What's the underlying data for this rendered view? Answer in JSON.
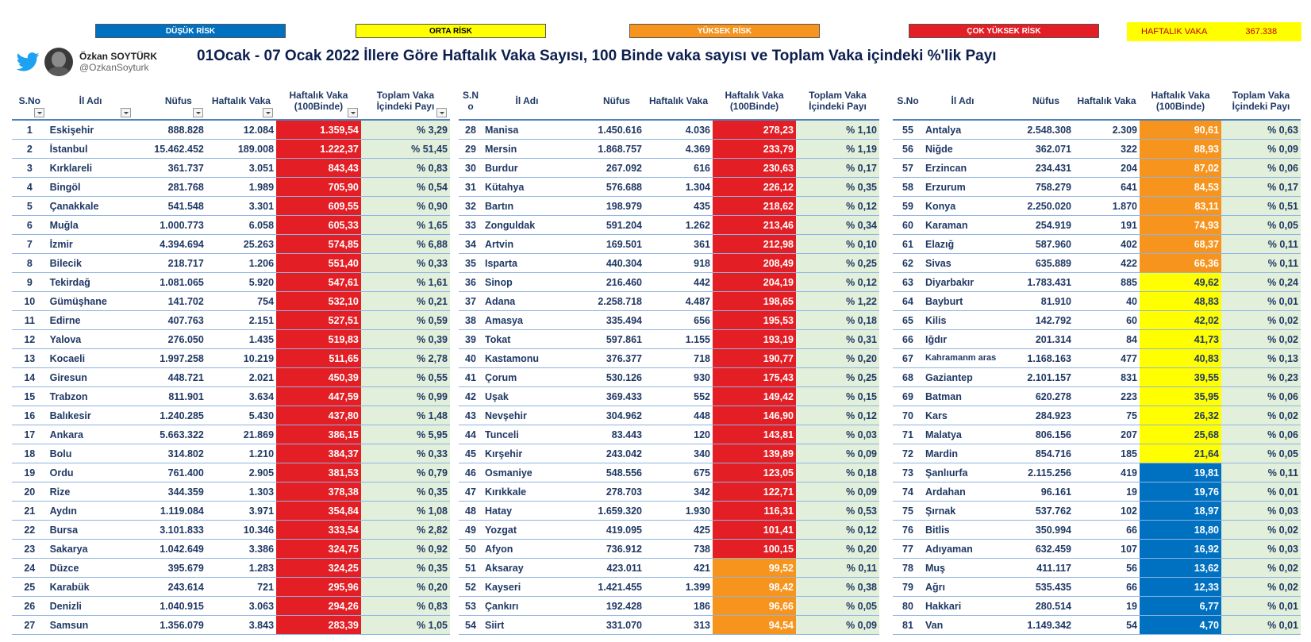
{
  "legend": [
    {
      "label": "DÜŞÜK RİSK",
      "bg": "#0070c0",
      "fg": "#ffffff"
    },
    {
      "label": "ORTA RİSK",
      "bg": "#ffff00",
      "fg": "#000000"
    },
    {
      "label": "YÜKSEK RİSK",
      "bg": "#f7941d",
      "fg": "#ffffff"
    },
    {
      "label": "ÇOK YÜKSEK RİSK",
      "bg": "#e31e24",
      "fg": "#ffffff"
    }
  ],
  "weekly_total": {
    "label": "HAFTALIK VAKA",
    "value": "367.338"
  },
  "author": {
    "name": "Özkan SOYTÜRK",
    "handle": "@OzkanSoyturk"
  },
  "title": "01Ocak - 07 Ocak 2022  İllere Göre Haftalık Vaka Sayısı, 100 Binde vaka sayısı ve Toplam Vaka içindeki %'lik Payı",
  "headers": {
    "no_left": "S.No",
    "no_mid": "S.N o",
    "no_right": "S.No",
    "name": "İl Adı",
    "population": "Nüfus",
    "weekly": "Haftalık Vaka",
    "rate": "Haftalık Vaka (100Binde)",
    "share": "Toplam Vaka İçindeki Payı"
  },
  "colors": {
    "red": "#e31e24",
    "orange": "#f7941d",
    "yellow": "#ffff00",
    "blue": "#0070c0",
    "share_bg": "#e2efda",
    "text": "#1f3864"
  },
  "tables": [
    [
      {
        "no": "1",
        "name": "Eskişehir",
        "population": "888.828",
        "weekly": "12.084",
        "rate": "1.359,54",
        "share": "% 3,29",
        "risk": "red"
      },
      {
        "no": "2",
        "name": "İstanbul",
        "population": "15.462.452",
        "weekly": "189.008",
        "rate": "1.222,37",
        "share": "% 51,45",
        "risk": "red"
      },
      {
        "no": "3",
        "name": "Kırklareli",
        "population": "361.737",
        "weekly": "3.051",
        "rate": "843,43",
        "share": "% 0,83",
        "risk": "red"
      },
      {
        "no": "4",
        "name": "Bingöl",
        "population": "281.768",
        "weekly": "1.989",
        "rate": "705,90",
        "share": "% 0,54",
        "risk": "red"
      },
      {
        "no": "5",
        "name": "Çanakkale",
        "population": "541.548",
        "weekly": "3.301",
        "rate": "609,55",
        "share": "% 0,90",
        "risk": "red"
      },
      {
        "no": "6",
        "name": "Muğla",
        "population": "1.000.773",
        "weekly": "6.058",
        "rate": "605,33",
        "share": "% 1,65",
        "risk": "red"
      },
      {
        "no": "7",
        "name": "İzmir",
        "population": "4.394.694",
        "weekly": "25.263",
        "rate": "574,85",
        "share": "% 6,88",
        "risk": "red"
      },
      {
        "no": "8",
        "name": "Bilecik",
        "population": "218.717",
        "weekly": "1.206",
        "rate": "551,40",
        "share": "% 0,33",
        "risk": "red"
      },
      {
        "no": "9",
        "name": "Tekirdağ",
        "population": "1.081.065",
        "weekly": "5.920",
        "rate": "547,61",
        "share": "% 1,61",
        "risk": "red"
      },
      {
        "no": "10",
        "name": "Gümüşhane",
        "population": "141.702",
        "weekly": "754",
        "rate": "532,10",
        "share": "% 0,21",
        "risk": "red"
      },
      {
        "no": "11",
        "name": "Edirne",
        "population": "407.763",
        "weekly": "2.151",
        "rate": "527,51",
        "share": "% 0,59",
        "risk": "red"
      },
      {
        "no": "12",
        "name": "Yalova",
        "population": "276.050",
        "weekly": "1.435",
        "rate": "519,83",
        "share": "% 0,39",
        "risk": "red"
      },
      {
        "no": "13",
        "name": "Kocaeli",
        "population": "1.997.258",
        "weekly": "10.219",
        "rate": "511,65",
        "share": "% 2,78",
        "risk": "red"
      },
      {
        "no": "14",
        "name": "Giresun",
        "population": "448.721",
        "weekly": "2.021",
        "rate": "450,39",
        "share": "% 0,55",
        "risk": "red"
      },
      {
        "no": "15",
        "name": "Trabzon",
        "population": "811.901",
        "weekly": "3.634",
        "rate": "447,59",
        "share": "% 0,99",
        "risk": "red"
      },
      {
        "no": "16",
        "name": "Balıkesir",
        "population": "1.240.285",
        "weekly": "5.430",
        "rate": "437,80",
        "share": "% 1,48",
        "risk": "red"
      },
      {
        "no": "17",
        "name": "Ankara",
        "population": "5.663.322",
        "weekly": "21.869",
        "rate": "386,15",
        "share": "% 5,95",
        "risk": "red"
      },
      {
        "no": "18",
        "name": "Bolu",
        "population": "314.802",
        "weekly": "1.210",
        "rate": "384,37",
        "share": "% 0,33",
        "risk": "red"
      },
      {
        "no": "19",
        "name": "Ordu",
        "population": "761.400",
        "weekly": "2.905",
        "rate": "381,53",
        "share": "% 0,79",
        "risk": "red"
      },
      {
        "no": "20",
        "name": "Rize",
        "population": "344.359",
        "weekly": "1.303",
        "rate": "378,38",
        "share": "% 0,35",
        "risk": "red"
      },
      {
        "no": "21",
        "name": "Aydın",
        "population": "1.119.084",
        "weekly": "3.971",
        "rate": "354,84",
        "share": "% 1,08",
        "risk": "red"
      },
      {
        "no": "22",
        "name": "Bursa",
        "population": "3.101.833",
        "weekly": "10.346",
        "rate": "333,54",
        "share": "% 2,82",
        "risk": "red"
      },
      {
        "no": "23",
        "name": "Sakarya",
        "population": "1.042.649",
        "weekly": "3.386",
        "rate": "324,75",
        "share": "% 0,92",
        "risk": "red"
      },
      {
        "no": "24",
        "name": "Düzce",
        "population": "395.679",
        "weekly": "1.283",
        "rate": "324,25",
        "share": "% 0,35",
        "risk": "red"
      },
      {
        "no": "25",
        "name": "Karabük",
        "population": "243.614",
        "weekly": "721",
        "rate": "295,96",
        "share": "% 0,20",
        "risk": "red"
      },
      {
        "no": "26",
        "name": "Denizli",
        "population": "1.040.915",
        "weekly": "3.063",
        "rate": "294,26",
        "share": "% 0,83",
        "risk": "red"
      },
      {
        "no": "27",
        "name": "Samsun",
        "population": "1.356.079",
        "weekly": "3.843",
        "rate": "283,39",
        "share": "% 1,05",
        "risk": "red"
      }
    ],
    [
      {
        "no": "28",
        "name": "Manisa",
        "population": "1.450.616",
        "weekly": "4.036",
        "rate": "278,23",
        "share": "% 1,10",
        "risk": "red"
      },
      {
        "no": "29",
        "name": "Mersin",
        "population": "1.868.757",
        "weekly": "4.369",
        "rate": "233,79",
        "share": "% 1,19",
        "risk": "red"
      },
      {
        "no": "30",
        "name": "Burdur",
        "population": "267.092",
        "weekly": "616",
        "rate": "230,63",
        "share": "% 0,17",
        "risk": "red"
      },
      {
        "no": "31",
        "name": "Kütahya",
        "population": "576.688",
        "weekly": "1.304",
        "rate": "226,12",
        "share": "% 0,35",
        "risk": "red"
      },
      {
        "no": "32",
        "name": "Bartın",
        "population": "198.979",
        "weekly": "435",
        "rate": "218,62",
        "share": "% 0,12",
        "risk": "red"
      },
      {
        "no": "33",
        "name": "Zonguldak",
        "population": "591.204",
        "weekly": "1.262",
        "rate": "213,46",
        "share": "% 0,34",
        "risk": "red"
      },
      {
        "no": "34",
        "name": "Artvin",
        "population": "169.501",
        "weekly": "361",
        "rate": "212,98",
        "share": "% 0,10",
        "risk": "red"
      },
      {
        "no": "35",
        "name": "Isparta",
        "population": "440.304",
        "weekly": "918",
        "rate": "208,49",
        "share": "% 0,25",
        "risk": "red"
      },
      {
        "no": "36",
        "name": "Sinop",
        "population": "216.460",
        "weekly": "442",
        "rate": "204,19",
        "share": "% 0,12",
        "risk": "red"
      },
      {
        "no": "37",
        "name": "Adana",
        "population": "2.258.718",
        "weekly": "4.487",
        "rate": "198,65",
        "share": "% 1,22",
        "risk": "red"
      },
      {
        "no": "38",
        "name": "Amasya",
        "population": "335.494",
        "weekly": "656",
        "rate": "195,53",
        "share": "% 0,18",
        "risk": "red"
      },
      {
        "no": "39",
        "name": "Tokat",
        "population": "597.861",
        "weekly": "1.155",
        "rate": "193,19",
        "share": "% 0,31",
        "risk": "red"
      },
      {
        "no": "40",
        "name": "Kastamonu",
        "population": "376.377",
        "weekly": "718",
        "rate": "190,77",
        "share": "% 0,20",
        "risk": "red"
      },
      {
        "no": "41",
        "name": "Çorum",
        "population": "530.126",
        "weekly": "930",
        "rate": "175,43",
        "share": "% 0,25",
        "risk": "red"
      },
      {
        "no": "42",
        "name": "Uşak",
        "population": "369.433",
        "weekly": "552",
        "rate": "149,42",
        "share": "% 0,15",
        "risk": "red"
      },
      {
        "no": "43",
        "name": "Nevşehir",
        "population": "304.962",
        "weekly": "448",
        "rate": "146,90",
        "share": "% 0,12",
        "risk": "red"
      },
      {
        "no": "44",
        "name": "Tunceli",
        "population": "83.443",
        "weekly": "120",
        "rate": "143,81",
        "share": "% 0,03",
        "risk": "red"
      },
      {
        "no": "45",
        "name": "Kırşehir",
        "population": "243.042",
        "weekly": "340",
        "rate": "139,89",
        "share": "% 0,09",
        "risk": "red"
      },
      {
        "no": "46",
        "name": "Osmaniye",
        "population": "548.556",
        "weekly": "675",
        "rate": "123,05",
        "share": "% 0,18",
        "risk": "red"
      },
      {
        "no": "47",
        "name": "Kırıkkale",
        "population": "278.703",
        "weekly": "342",
        "rate": "122,71",
        "share": "% 0,09",
        "risk": "red"
      },
      {
        "no": "48",
        "name": "Hatay",
        "population": "1.659.320",
        "weekly": "1.930",
        "rate": "116,31",
        "share": "% 0,53",
        "risk": "red"
      },
      {
        "no": "49",
        "name": "Yozgat",
        "population": "419.095",
        "weekly": "425",
        "rate": "101,41",
        "share": "% 0,12",
        "risk": "red"
      },
      {
        "no": "50",
        "name": "Afyon",
        "population": "736.912",
        "weekly": "738",
        "rate": "100,15",
        "share": "% 0,20",
        "risk": "red"
      },
      {
        "no": "51",
        "name": "Aksaray",
        "population": "423.011",
        "weekly": "421",
        "rate": "99,52",
        "share": "% 0,11",
        "risk": "orange"
      },
      {
        "no": "52",
        "name": "Kayseri",
        "population": "1.421.455",
        "weekly": "1.399",
        "rate": "98,42",
        "share": "% 0,38",
        "risk": "orange"
      },
      {
        "no": "53",
        "name": "Çankırı",
        "population": "192.428",
        "weekly": "186",
        "rate": "96,66",
        "share": "% 0,05",
        "risk": "orange"
      },
      {
        "no": "54",
        "name": "Siirt",
        "population": "331.070",
        "weekly": "313",
        "rate": "94,54",
        "share": "% 0,09",
        "risk": "orange"
      }
    ],
    [
      {
        "no": "55",
        "name": "Antalya",
        "population": "2.548.308",
        "weekly": "2.309",
        "rate": "90,61",
        "share": "% 0,63",
        "risk": "orange"
      },
      {
        "no": "56",
        "name": "Niğde",
        "population": "362.071",
        "weekly": "322",
        "rate": "88,93",
        "share": "% 0,09",
        "risk": "orange"
      },
      {
        "no": "57",
        "name": "Erzincan",
        "population": "234.431",
        "weekly": "204",
        "rate": "87,02",
        "share": "% 0,06",
        "risk": "orange"
      },
      {
        "no": "58",
        "name": "Erzurum",
        "population": "758.279",
        "weekly": "641",
        "rate": "84,53",
        "share": "% 0,17",
        "risk": "orange"
      },
      {
        "no": "59",
        "name": "Konya",
        "population": "2.250.020",
        "weekly": "1.870",
        "rate": "83,11",
        "share": "% 0,51",
        "risk": "orange"
      },
      {
        "no": "60",
        "name": "Karaman",
        "population": "254.919",
        "weekly": "191",
        "rate": "74,93",
        "share": "% 0,05",
        "risk": "orange"
      },
      {
        "no": "61",
        "name": "Elazığ",
        "population": "587.960",
        "weekly": "402",
        "rate": "68,37",
        "share": "% 0,11",
        "risk": "orange"
      },
      {
        "no": "62",
        "name": "Sivas",
        "population": "635.889",
        "weekly": "422",
        "rate": "66,36",
        "share": "% 0,11",
        "risk": "orange"
      },
      {
        "no": "63",
        "name": "Diyarbakır",
        "population": "1.783.431",
        "weekly": "885",
        "rate": "49,62",
        "share": "% 0,24",
        "risk": "yellow"
      },
      {
        "no": "64",
        "name": "Bayburt",
        "population": "81.910",
        "weekly": "40",
        "rate": "48,83",
        "share": "% 0,01",
        "risk": "yellow"
      },
      {
        "no": "65",
        "name": "Kilis",
        "population": "142.792",
        "weekly": "60",
        "rate": "42,02",
        "share": "% 0,02",
        "risk": "yellow"
      },
      {
        "no": "66",
        "name": "Iğdır",
        "population": "201.314",
        "weekly": "84",
        "rate": "41,73",
        "share": "% 0,02",
        "risk": "yellow"
      },
      {
        "no": "67",
        "name": "Kahramanm aras",
        "population": "1.168.163",
        "weekly": "477",
        "rate": "40,83",
        "share": "% 0,13",
        "risk": "yellow"
      },
      {
        "no": "68",
        "name": "Gaziantep",
        "population": "2.101.157",
        "weekly": "831",
        "rate": "39,55",
        "share": "% 0,23",
        "risk": "yellow"
      },
      {
        "no": "69",
        "name": "Batman",
        "population": "620.278",
        "weekly": "223",
        "rate": "35,95",
        "share": "% 0,06",
        "risk": "yellow"
      },
      {
        "no": "70",
        "name": "Kars",
        "population": "284.923",
        "weekly": "75",
        "rate": "26,32",
        "share": "% 0,02",
        "risk": "yellow"
      },
      {
        "no": "71",
        "name": "Malatya",
        "population": "806.156",
        "weekly": "207",
        "rate": "25,68",
        "share": "% 0,06",
        "risk": "yellow"
      },
      {
        "no": "72",
        "name": "Mardin",
        "population": "854.716",
        "weekly": "185",
        "rate": "21,64",
        "share": "% 0,05",
        "risk": "yellow"
      },
      {
        "no": "73",
        "name": "Şanlıurfa",
        "population": "2.115.256",
        "weekly": "419",
        "rate": "19,81",
        "share": "% 0,11",
        "risk": "blue"
      },
      {
        "no": "74",
        "name": "Ardahan",
        "population": "96.161",
        "weekly": "19",
        "rate": "19,76",
        "share": "% 0,01",
        "risk": "blue"
      },
      {
        "no": "75",
        "name": "Şırnak",
        "population": "537.762",
        "weekly": "102",
        "rate": "18,97",
        "share": "% 0,03",
        "risk": "blue"
      },
      {
        "no": "76",
        "name": "Bitlis",
        "population": "350.994",
        "weekly": "66",
        "rate": "18,80",
        "share": "% 0,02",
        "risk": "blue"
      },
      {
        "no": "77",
        "name": "Adıyaman",
        "population": "632.459",
        "weekly": "107",
        "rate": "16,92",
        "share": "% 0,03",
        "risk": "blue"
      },
      {
        "no": "78",
        "name": "Muş",
        "population": "411.117",
        "weekly": "56",
        "rate": "13,62",
        "share": "% 0,02",
        "risk": "blue"
      },
      {
        "no": "79",
        "name": "Ağrı",
        "population": "535.435",
        "weekly": "66",
        "rate": "12,33",
        "share": "% 0,02",
        "risk": "blue"
      },
      {
        "no": "80",
        "name": "Hakkari",
        "population": "280.514",
        "weekly": "19",
        "rate": "6,77",
        "share": "% 0,01",
        "risk": "blue"
      },
      {
        "no": "81",
        "name": "Van",
        "population": "1.149.342",
        "weekly": "54",
        "rate": "4,70",
        "share": "% 0,01",
        "risk": "blue"
      }
    ]
  ]
}
